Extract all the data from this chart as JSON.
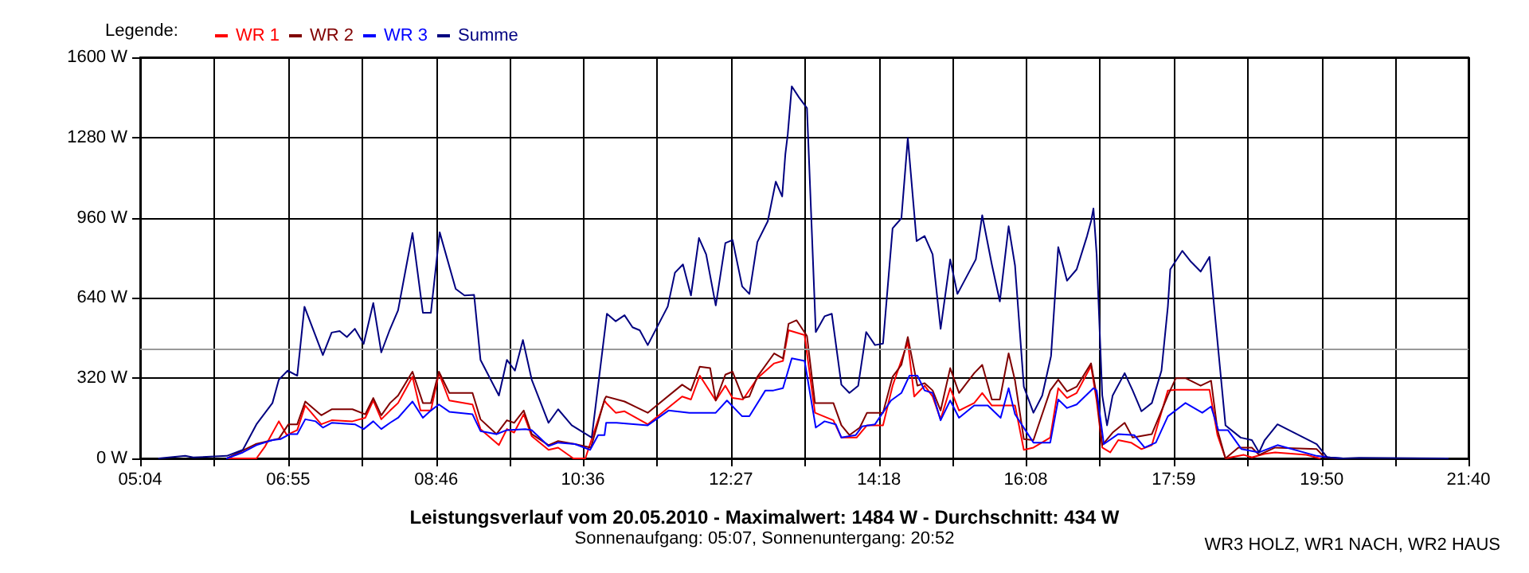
{
  "chart_data": {
    "type": "line",
    "title": "Leistungsverlauf vom 20.05.2010 - Maximalwert: 1484 W - Durchschnitt: 434 W",
    "subtitle": "Sonnenaufgang: 05:07, Sonnenuntergang: 20:52",
    "legend_title": "Legende:",
    "annotations": [
      "WR3 HOLZ, WR1 NACH, WR2 HAUS"
    ],
    "xlim": [
      5.0667,
      21.6667
    ],
    "xticks": [
      {
        "value": 5.0667,
        "label": "05:04"
      },
      {
        "value": 5.9917,
        "label": null
      },
      {
        "value": 6.9167,
        "label": "06:55"
      },
      {
        "value": 7.8417,
        "label": null
      },
      {
        "value": 8.7667,
        "label": "08:46"
      },
      {
        "value": 9.6833,
        "label": null
      },
      {
        "value": 10.6,
        "label": "10:36"
      },
      {
        "value": 11.525,
        "label": null
      },
      {
        "value": 12.45,
        "label": "12:27"
      },
      {
        "value": 13.375,
        "label": null
      },
      {
        "value": 14.3,
        "label": "14:18"
      },
      {
        "value": 15.2167,
        "label": null
      },
      {
        "value": 16.1333,
        "label": "16:08"
      },
      {
        "value": 17.0583,
        "label": null
      },
      {
        "value": 17.9833,
        "label": "17:59"
      },
      {
        "value": 18.9083,
        "label": null
      },
      {
        "value": 19.8333,
        "label": "19:50"
      },
      {
        "value": 20.75,
        "label": null
      },
      {
        "value": 21.6667,
        "label": "21:40"
      }
    ],
    "ylim": [
      0,
      1600
    ],
    "yticks": [
      {
        "value": 0,
        "label": "0 W"
      },
      {
        "value": 320,
        "label": "320 W"
      },
      {
        "value": 640,
        "label": "640 W"
      },
      {
        "value": 960,
        "label": "960 W"
      },
      {
        "value": 1280,
        "label": "1280 W"
      },
      {
        "value": 1600,
        "label": "1600 W"
      }
    ],
    "grid": true,
    "legend": "top left",
    "marker": "none",
    "line_style": "solid",
    "ref_lines": [
      {
        "axis": "y",
        "value": 434,
        "color": "#999999"
      }
    ],
    "series": [
      {
        "name": "WR 1",
        "color": "#ff0000",
        "x": [
          6.15,
          6.52,
          6.63,
          6.8,
          6.9,
          7.03,
          7.13,
          7.33,
          7.46,
          7.72,
          7.88,
          7.98,
          8.08,
          8.19,
          8.29,
          8.47,
          8.57,
          8.7,
          8.8,
          8.93,
          9.22,
          9.32,
          9.55,
          9.65,
          9.74,
          9.86,
          9.96,
          10.17,
          10.29,
          10.48,
          10.63,
          10.87,
          10.89,
          11.01,
          11.12,
          11.41,
          11.84,
          11.95,
          12.06,
          12.26,
          12.38,
          12.47,
          12.6,
          12.78,
          12.99,
          13.1,
          13.17,
          13.37,
          13.5,
          13.73,
          13.83,
          14.02,
          14.15,
          14.35,
          14.47,
          14.66,
          14.74,
          14.87,
          14.97,
          15.07,
          15.19,
          15.3,
          15.49,
          15.59,
          15.71,
          15.92,
          16.0,
          16.11,
          16.23,
          16.44,
          16.54,
          16.65,
          16.77,
          16.95,
          17.02,
          17.09,
          17.19,
          17.29,
          17.45,
          17.58,
          17.71,
          17.91,
          18.01,
          18.13,
          18.43,
          18.53,
          18.63,
          18.86,
          18.96,
          19.12,
          19.25,
          19.64,
          19.81
        ],
        "values": [
          0,
          0,
          49,
          148,
          93,
          113,
          211,
          136,
          152,
          148,
          162,
          231,
          156,
          191,
          221,
          326,
          191,
          191,
          340,
          231,
          215,
          117,
          53,
          117,
          103,
          176,
          89,
          34,
          43,
          0,
          0,
          231,
          221,
          182,
          188,
          136,
          247,
          235,
          330,
          231,
          290,
          241,
          235,
          320,
          379,
          389,
          511,
          492,
          182,
          152,
          83,
          83,
          132,
          132,
          290,
          464,
          247,
          290,
          247,
          156,
          280,
          191,
          221,
          261,
          211,
          211,
          211,
          34,
          43,
          83,
          280,
          241,
          261,
          369,
          231,
          43,
          24,
          73,
          63,
          37,
          53,
          271,
          274,
          274,
          274,
          93,
          0,
          14,
          4,
          18,
          24,
          14,
          0
        ]
      },
      {
        "name": "WR 2",
        "color": "#800000",
        "x": [
          6.15,
          6.51,
          6.72,
          6.8,
          6.92,
          7.03,
          7.13,
          7.33,
          7.46,
          7.72,
          7.88,
          7.98,
          8.08,
          8.19,
          8.29,
          8.47,
          8.6,
          8.7,
          8.8,
          8.93,
          9.22,
          9.32,
          9.52,
          9.65,
          9.74,
          9.86,
          9.96,
          10.17,
          10.29,
          10.5,
          10.7,
          10.87,
          10.89,
          11.12,
          11.41,
          11.84,
          11.95,
          12.06,
          12.19,
          12.26,
          12.38,
          12.47,
          12.6,
          12.68,
          12.78,
          12.99,
          13.1,
          13.17,
          13.27,
          13.4,
          13.5,
          13.73,
          13.83,
          13.93,
          14.06,
          14.15,
          14.35,
          14.47,
          14.58,
          14.66,
          14.78,
          14.87,
          14.97,
          15.07,
          15.19,
          15.3,
          15.49,
          15.59,
          15.71,
          15.81,
          15.92,
          16.0,
          16.11,
          16.23,
          16.44,
          16.54,
          16.65,
          16.77,
          16.95,
          17.02,
          17.09,
          17.22,
          17.37,
          17.47,
          17.71,
          17.91,
          18.01,
          18.13,
          18.32,
          18.45,
          18.53,
          18.63,
          18.79,
          18.96,
          19.05,
          19.25,
          19.77,
          19.87,
          20.03
        ],
        "values": [
          0,
          57,
          73,
          79,
          136,
          136,
          227,
          172,
          196,
          196,
          176,
          241,
          172,
          221,
          251,
          346,
          221,
          221,
          346,
          261,
          261,
          156,
          97,
          152,
          142,
          191,
          97,
          53,
          69,
          57,
          43,
          235,
          247,
          227,
          182,
          294,
          271,
          366,
          360,
          231,
          334,
          346,
          241,
          247,
          326,
          419,
          399,
          537,
          551,
          488,
          221,
          221,
          132,
          93,
          123,
          182,
          182,
          326,
          373,
          484,
          290,
          300,
          271,
          191,
          360,
          261,
          340,
          373,
          235,
          235,
          419,
          310,
          77,
          73,
          271,
          314,
          267,
          286,
          379,
          251,
          53,
          103,
          142,
          83,
          97,
          251,
          320,
          320,
          290,
          310,
          113,
          0,
          43,
          43,
          14,
          43,
          37,
          4,
          0
        ]
      },
      {
        "name": "WR 3",
        "color": "#0000ff",
        "x": [
          6.15,
          6.35,
          6.52,
          6.72,
          6.82,
          6.94,
          7.03,
          7.13,
          7.26,
          7.35,
          7.46,
          7.75,
          7.86,
          7.98,
          8.08,
          8.19,
          8.29,
          8.47,
          8.6,
          8.7,
          8.8,
          8.93,
          9.22,
          9.32,
          9.52,
          9.65,
          9.88,
          9.96,
          10.17,
          10.29,
          10.5,
          10.69,
          10.79,
          10.87,
          10.89,
          11.02,
          11.41,
          11.67,
          11.93,
          12.26,
          12.4,
          12.59,
          12.68,
          12.88,
          12.98,
          13.1,
          13.21,
          13.37,
          13.51,
          13.62,
          13.76,
          13.83,
          14.01,
          14.09,
          14.25,
          14.45,
          14.58,
          14.68,
          14.78,
          14.87,
          14.97,
          15.07,
          15.19,
          15.3,
          15.49,
          15.66,
          15.82,
          15.92,
          16.0,
          16.23,
          16.44,
          16.54,
          16.65,
          16.77,
          16.98,
          17.02,
          17.11,
          17.29,
          17.49,
          17.62,
          17.76,
          17.91,
          18.13,
          18.34,
          18.45,
          18.54,
          18.66,
          18.83,
          19.05,
          19.28,
          19.77,
          19.94,
          20.1
        ],
        "values": [
          0,
          24,
          53,
          73,
          77,
          97,
          97,
          156,
          148,
          123,
          142,
          136,
          117,
          148,
          117,
          142,
          162,
          227,
          162,
          191,
          215,
          186,
          176,
          109,
          97,
          113,
          117,
          113,
          49,
          63,
          57,
          34,
          93,
          93,
          142,
          142,
          132,
          191,
          182,
          182,
          231,
          168,
          168,
          271,
          271,
          280,
          399,
          389,
          123,
          148,
          136,
          83,
          93,
          128,
          136,
          231,
          261,
          330,
          330,
          271,
          261,
          152,
          231,
          162,
          211,
          211,
          162,
          280,
          176,
          63,
          63,
          235,
          201,
          215,
          280,
          271,
          57,
          97,
          93,
          43,
          63,
          168,
          221,
          182,
          207,
          113,
          113,
          37,
          24,
          53,
          10,
          4,
          0
        ]
      },
      {
        "name": "Summe",
        "color": "#000080",
        "x": [
          5.3,
          5.63,
          5.73,
          6.15,
          6.35,
          6.52,
          6.72,
          6.8,
          6.91,
          7.03,
          7.12,
          7.35,
          7.46,
          7.56,
          7.65,
          7.75,
          7.86,
          7.98,
          8.08,
          8.18,
          8.29,
          8.47,
          8.6,
          8.7,
          8.81,
          9.01,
          9.12,
          9.24,
          9.32,
          9.55,
          9.65,
          9.75,
          9.85,
          9.96,
          10.17,
          10.29,
          10.46,
          10.71,
          10.9,
          11.01,
          11.12,
          11.22,
          11.31,
          11.41,
          11.66,
          11.75,
          11.85,
          11.95,
          12.05,
          12.14,
          12.26,
          12.38,
          12.47,
          12.59,
          12.68,
          12.78,
          12.91,
          13.01,
          13.09,
          13.13,
          13.16,
          13.21,
          13.3,
          13.4,
          13.51,
          13.62,
          13.71,
          13.83,
          13.93,
          14.04,
          14.14,
          14.25,
          14.35,
          14.47,
          14.58,
          14.66,
          14.77,
          14.87,
          14.97,
          15.07,
          15.19,
          15.28,
          15.51,
          15.59,
          15.71,
          15.81,
          15.92,
          16.0,
          16.11,
          16.23,
          16.34,
          16.45,
          16.54,
          16.65,
          16.77,
          16.9,
          16.95,
          16.98,
          17.02,
          17.09,
          17.15,
          17.22,
          17.37,
          17.47,
          17.58,
          17.71,
          17.83,
          17.91,
          17.94,
          18.09,
          18.2,
          18.32,
          18.43,
          18.5,
          18.63,
          18.82,
          18.96,
          19.05,
          19.12,
          19.28,
          19.77,
          19.9,
          20.1,
          20.3,
          21.41
        ],
        "values": [
          0,
          10,
          4,
          10,
          34,
          136,
          221,
          314,
          350,
          330,
          605,
          412,
          502,
          508,
          484,
          517,
          457,
          620,
          423,
          508,
          591,
          899,
          581,
          581,
          902,
          676,
          650,
          652,
          393,
          251,
          393,
          350,
          472,
          314,
          142,
          196,
          132,
          83,
          577,
          547,
          571,
          523,
          511,
          452,
          606,
          741,
          774,
          650,
          879,
          814,
          610,
          859,
          871,
          686,
          656,
          863,
          946,
          1104,
          1045,
          1215,
          1294,
          1484,
          1440,
          1397,
          504,
          567,
          577,
          294,
          261,
          290,
          504,
          452,
          458,
          918,
          958,
          1278,
          867,
          887,
          814,
          517,
          794,
          656,
          794,
          970,
          774,
          626,
          926,
          769,
          286,
          182,
          251,
          409,
          843,
          709,
          754,
          887,
          946,
          997,
          814,
          251,
          132,
          251,
          340,
          271,
          188,
          221,
          350,
          606,
          754,
          828,
          784,
          745,
          804,
          567,
          132,
          83,
          73,
          24,
          73,
          136,
          57,
          4,
          0,
          2,
          0
        ]
      }
    ]
  }
}
